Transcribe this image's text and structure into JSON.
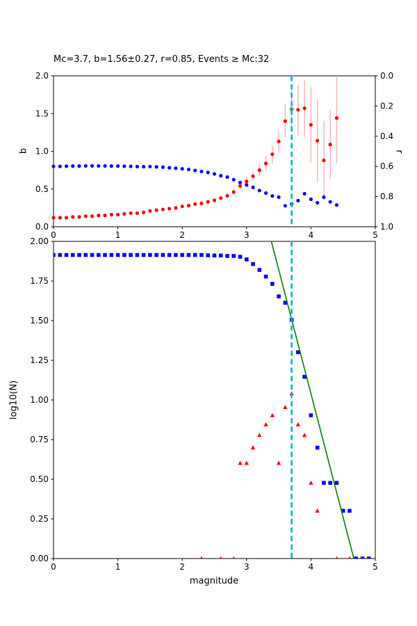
{
  "title": "Mc=3.7, b=1.56±0.27, r=0.85, Events ≥ Mc:32",
  "chart_data": [
    {
      "type": "scatter",
      "panel": "top",
      "title": "Mc=3.7, b=1.56±0.27, r=0.85, Events ≥ Mc:32",
      "xlim": [
        0,
        5
      ],
      "xticks": [
        "0",
        "1",
        "2",
        "3",
        "4",
        "5"
      ],
      "ylabel_left": "b",
      "ylim_left": [
        0,
        2
      ],
      "yticks_left": [
        "0.0",
        "0.5",
        "1.0",
        "1.5",
        "2.0"
      ],
      "ylabel_right": "r",
      "ylim_right": [
        0,
        1
      ],
      "right_axis_inverted": true,
      "yticks_right": [
        "0.0",
        "0.2",
        "0.4",
        "0.6",
        "0.8",
        "1.0"
      ],
      "grid": false,
      "mc_vline_x": 3.7,
      "mc_line_color": "#12b9c9",
      "series": [
        {
          "name": "b-value-vs-cutoff",
          "marker": "circle",
          "color": "#ff0000",
          "errorbar_color": "#ffb0b0",
          "axis": "left",
          "x0": 0,
          "dx": 0.1,
          "y": [
            0.12,
            0.12,
            0.12,
            0.13,
            0.13,
            0.14,
            0.14,
            0.15,
            0.15,
            0.16,
            0.16,
            0.17,
            0.18,
            0.18,
            0.19,
            0.21,
            0.22,
            0.23,
            0.24,
            0.25,
            0.27,
            0.28,
            0.3,
            0.31,
            0.33,
            0.35,
            0.38,
            0.41,
            0.46,
            0.54,
            0.6,
            0.67,
            0.75,
            0.84,
            0.96,
            1.13,
            1.4,
            1.56,
            1.55,
            1.57,
            1.35,
            1.14,
            0.88,
            1.09,
            1.44
          ],
          "yerr": [
            0.01,
            0.01,
            0.01,
            0.01,
            0.01,
            0.01,
            0.01,
            0.01,
            0.01,
            0.01,
            0.01,
            0.01,
            0.01,
            0.01,
            0.01,
            0.01,
            0.015,
            0.015,
            0.015,
            0.015,
            0.02,
            0.02,
            0.02,
            0.02,
            0.025,
            0.025,
            0.03,
            0.03,
            0.035,
            0.04,
            0.05,
            0.06,
            0.08,
            0.1,
            0.12,
            0.15,
            0.22,
            0.27,
            0.33,
            0.38,
            0.5,
            0.55,
            0.52,
            0.46,
            0.6
          ]
        },
        {
          "name": "goodness-of-fit-r",
          "marker": "circle",
          "color": "#0000ff",
          "axis": "right",
          "x0": 0,
          "dx": 0.1,
          "y": [
            0.6,
            0.6,
            0.599,
            0.598,
            0.598,
            0.597,
            0.597,
            0.597,
            0.597,
            0.598,
            0.598,
            0.599,
            0.6,
            0.601,
            0.602,
            0.601,
            0.603,
            0.605,
            0.609,
            0.612,
            0.616,
            0.62,
            0.627,
            0.634,
            0.64,
            0.65,
            0.662,
            0.671,
            0.688,
            0.707,
            0.723,
            0.739,
            0.76,
            0.777,
            0.796,
            0.804,
            0.861,
            0.849,
            0.827,
            0.781,
            0.818,
            0.841,
            0.804,
            0.835,
            0.856
          ]
        },
        {
          "name": "mc-selected-point",
          "marker": "circle",
          "color": "#808080",
          "axis": "left",
          "x": [
            3.7
          ],
          "y": [
            1.555
          ]
        }
      ]
    },
    {
      "type": "scatter",
      "panel": "bottom",
      "xlabel": "magnitude",
      "xlim": [
        0,
        5
      ],
      "xticks": [
        "0",
        "1",
        "2",
        "3",
        "4",
        "5"
      ],
      "ylabel": "log10(N)",
      "ylim": [
        0,
        2
      ],
      "yticks": [
        "0.00",
        "0.25",
        "0.50",
        "0.75",
        "1.00",
        "1.25",
        "1.50",
        "1.75",
        "2.00"
      ],
      "grid": false,
      "mc_vline_x": 3.7,
      "mc_line_color": "#12b9c9",
      "fit_line": {
        "slope": -1.56,
        "intercept": 7.28,
        "color": "#007f00"
      },
      "series": [
        {
          "name": "cumulative-counts",
          "marker": "square",
          "color": "#0000ff",
          "x0": 0,
          "dx": 0.1,
          "y": [
            1.914,
            1.914,
            1.914,
            1.914,
            1.914,
            1.914,
            1.914,
            1.914,
            1.914,
            1.914,
            1.914,
            1.914,
            1.914,
            1.914,
            1.914,
            1.914,
            1.914,
            1.914,
            1.914,
            1.914,
            1.914,
            1.914,
            1.914,
            1.914,
            1.912,
            1.911,
            1.911,
            1.908,
            1.908,
            1.903,
            1.886,
            1.857,
            1.82,
            1.778,
            1.732,
            1.653,
            1.613,
            1.505,
            1.301,
            1.146,
            0.903,
            0.699,
            0.477,
            0.477,
            0.477,
            0.301,
            0.301,
            0,
            0,
            0
          ]
        },
        {
          "name": "noncumulative-counts",
          "marker": "triangle",
          "color": "#ff0000",
          "x": [
            2.3,
            2.6,
            2.8,
            2.9,
            3.0,
            3.1,
            3.2,
            3.3,
            3.4,
            3.5,
            3.6,
            3.7,
            3.8,
            3.9,
            4.0,
            4.1,
            4.4,
            4.6
          ],
          "y": [
            0,
            0,
            0,
            0.602,
            0.602,
            0.699,
            0.778,
            0.845,
            0.903,
            0.602,
            0.954,
            1.041,
            0.845,
            0.778,
            0.477,
            0.301,
            0,
            0
          ]
        }
      ]
    }
  ]
}
